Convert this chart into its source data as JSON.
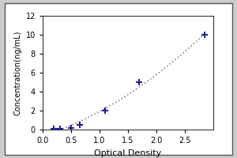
{
  "title": "",
  "xlabel": "Optical Density",
  "ylabel": "Concentration(ng/mL)",
  "x_data": [
    0.2,
    0.3,
    0.5,
    0.65,
    1.1,
    1.7,
    2.85
  ],
  "y_data": [
    0.05,
    0.1,
    0.2,
    0.5,
    2.0,
    5.0,
    10.0
  ],
  "xlim": [
    0,
    3.0
  ],
  "ylim": [
    0,
    12
  ],
  "xticks": [
    0,
    0.5,
    1.0,
    1.5,
    2.0,
    2.5
  ],
  "yticks": [
    0,
    2,
    4,
    6,
    8,
    10,
    12
  ],
  "marker": "+",
  "marker_color": "#22229a",
  "line_color": "#888888",
  "marker_size": 6,
  "line_width": 1.2,
  "xlabel_fontsize": 8,
  "ylabel_fontsize": 7,
  "tick_fontsize": 7,
  "bg_color": "#ffffff",
  "outer_bg": "#e8e8e8"
}
